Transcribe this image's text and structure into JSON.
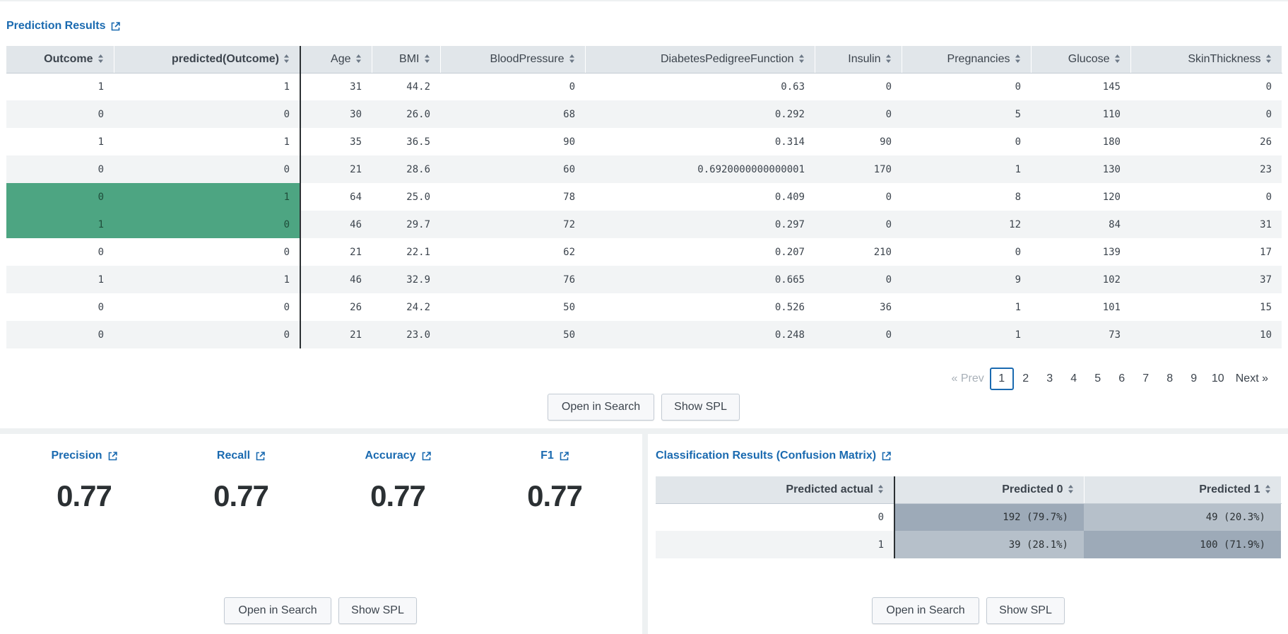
{
  "prediction_panel": {
    "title": "Prediction Results",
    "columns": [
      "Outcome",
      "predicted(Outcome)",
      "Age",
      "BMI",
      "BloodPressure",
      "DiabetesPedigreeFunction",
      "Insulin",
      "Pregnancies",
      "Glucose",
      "SkinThickness"
    ],
    "rows": [
      [
        "1",
        "1",
        "31",
        "44.2",
        "0",
        "0.63",
        "0",
        "0",
        "145",
        "0"
      ],
      [
        "0",
        "0",
        "30",
        "26.0",
        "68",
        "0.292",
        "0",
        "5",
        "110",
        "0"
      ],
      [
        "1",
        "1",
        "35",
        "36.5",
        "90",
        "0.314",
        "90",
        "0",
        "180",
        "26"
      ],
      [
        "0",
        "0",
        "21",
        "28.6",
        "60",
        "0.6920000000000001",
        "170",
        "1",
        "130",
        "23"
      ],
      [
        "0",
        "1",
        "64",
        "25.0",
        "78",
        "0.409",
        "0",
        "8",
        "120",
        "0"
      ],
      [
        "1",
        "0",
        "46",
        "29.7",
        "72",
        "0.297",
        "0",
        "12",
        "84",
        "31"
      ],
      [
        "0",
        "0",
        "21",
        "22.1",
        "62",
        "0.207",
        "210",
        "0",
        "139",
        "17"
      ],
      [
        "1",
        "1",
        "46",
        "32.9",
        "76",
        "0.665",
        "0",
        "9",
        "102",
        "37"
      ],
      [
        "0",
        "0",
        "26",
        "24.2",
        "50",
        "0.526",
        "36",
        "1",
        "101",
        "15"
      ],
      [
        "0",
        "0",
        "21",
        "23.0",
        "50",
        "0.248",
        "0",
        "1",
        "73",
        "10"
      ]
    ],
    "pager": {
      "prev": "« Prev",
      "pages": [
        "1",
        "2",
        "3",
        "4",
        "5",
        "6",
        "7",
        "8",
        "9",
        "10"
      ],
      "current": "1",
      "next": "Next »"
    },
    "open_in_search": "Open in Search",
    "show_spl": "Show SPL"
  },
  "metrics_panel": {
    "metrics": [
      {
        "title": "Precision",
        "value": "0.77"
      },
      {
        "title": "Recall",
        "value": "0.77"
      },
      {
        "title": "Accuracy",
        "value": "0.77"
      },
      {
        "title": "F1",
        "value": "0.77"
      }
    ],
    "open_in_search": "Open in Search",
    "show_spl": "Show SPL"
  },
  "confusion_panel": {
    "title": "Classification Results (Confusion Matrix)",
    "columns": [
      "Predicted actual",
      "Predicted 0",
      "Predicted 1"
    ],
    "rows": [
      [
        "0",
        "192 (79.7%)",
        "49 (20.3%)"
      ],
      [
        "1",
        "39 (28.1%)",
        "100 (71.9%)"
      ]
    ],
    "open_in_search": "Open in Search",
    "show_spl": "Show SPL"
  },
  "colors": {
    "link": "#1a6ab0",
    "mismatch_highlight": "#4da582",
    "cm_strong": "#9daab8",
    "cm_light": "#b6c0ca"
  },
  "icons": {
    "external": "external-link-icon",
    "sort": "sort-icon"
  }
}
